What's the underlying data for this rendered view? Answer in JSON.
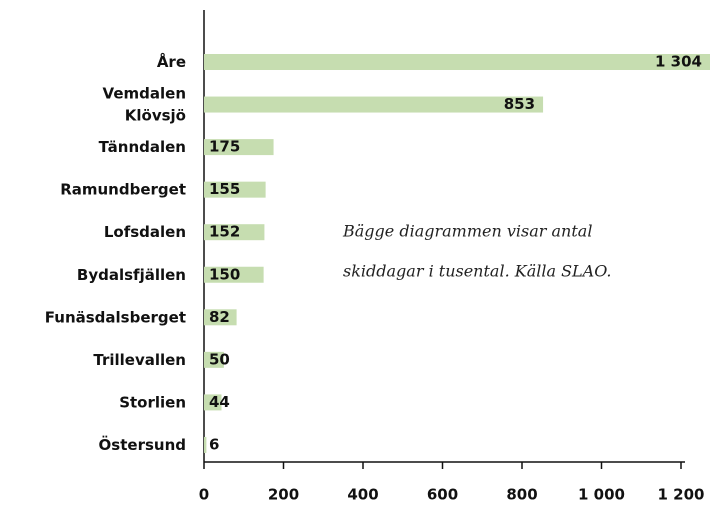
{
  "chart_data": {
    "type": "bar",
    "orientation": "horizontal",
    "categories": [
      "Åre",
      "Vemdalen\nKlövsjö",
      "Tänndalen",
      "Ramundberget",
      "Lofsdalen",
      "Bydalsfjällen",
      "Funäsdalsberget",
      "Trillevallen",
      "Storlien",
      "Östersund"
    ],
    "values": [
      1304,
      853,
      175,
      155,
      152,
      150,
      82,
      50,
      44,
      6
    ],
    "value_labels": [
      "1 304",
      "853",
      "175",
      "155",
      "152",
      "150",
      "82",
      "50",
      "44",
      "6"
    ],
    "color": "#c6ddb0",
    "xlim": [
      0,
      1200
    ],
    "xticks": [
      0,
      200,
      400,
      600,
      800,
      {
        "value": 1000,
        "label": "1 000"
      },
      {
        "value": 1200,
        "label": "1 200"
      }
    ],
    "annotation": [
      "Bägge diagrammen visar antal",
      "skiddagar i tusental. Källa SLAO."
    ]
  }
}
